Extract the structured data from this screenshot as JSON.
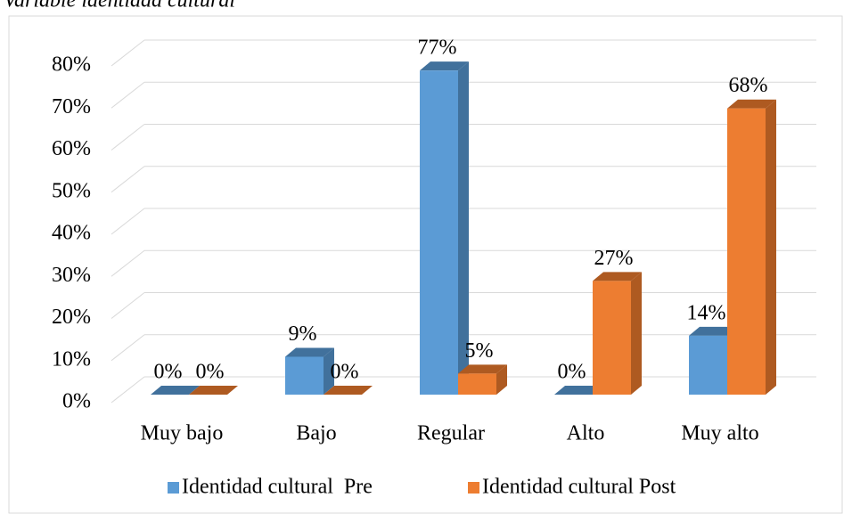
{
  "chart_data": {
    "type": "bar3d",
    "title": "Variable identidad cultural",
    "categories": [
      "Muy bajo",
      "Bajo",
      "Regular",
      "Alto",
      "Muy alto"
    ],
    "series": [
      {
        "name": "Identidad cultural  Pre",
        "color": "#5b9bd5",
        "side_color": "#41719c",
        "values": [
          0,
          9,
          77,
          0,
          14
        ],
        "value_labels": [
          "0%",
          "9%",
          "77%",
          "0%",
          "14%"
        ]
      },
      {
        "name": "Identidad cultural Post",
        "color": "#ed7d31",
        "side_color": "#ae5a21",
        "values": [
          0,
          0,
          5,
          27,
          68
        ],
        "value_labels": [
          "0%",
          "0%",
          "5%",
          "27%",
          "68%"
        ]
      }
    ],
    "ylim": [
      0,
      80
    ],
    "yticks": [
      {
        "value": 0,
        "label": "0%"
      },
      {
        "value": 10,
        "label": "10%"
      },
      {
        "value": 20,
        "label": "20%"
      },
      {
        "value": 30,
        "label": "30%"
      },
      {
        "value": 40,
        "label": "40%"
      },
      {
        "value": 50,
        "label": "50%"
      },
      {
        "value": 60,
        "label": "60%"
      },
      {
        "value": 70,
        "label": "70%"
      },
      {
        "value": 80,
        "label": "80%"
      }
    ],
    "grid": true,
    "legend": "bottom"
  }
}
